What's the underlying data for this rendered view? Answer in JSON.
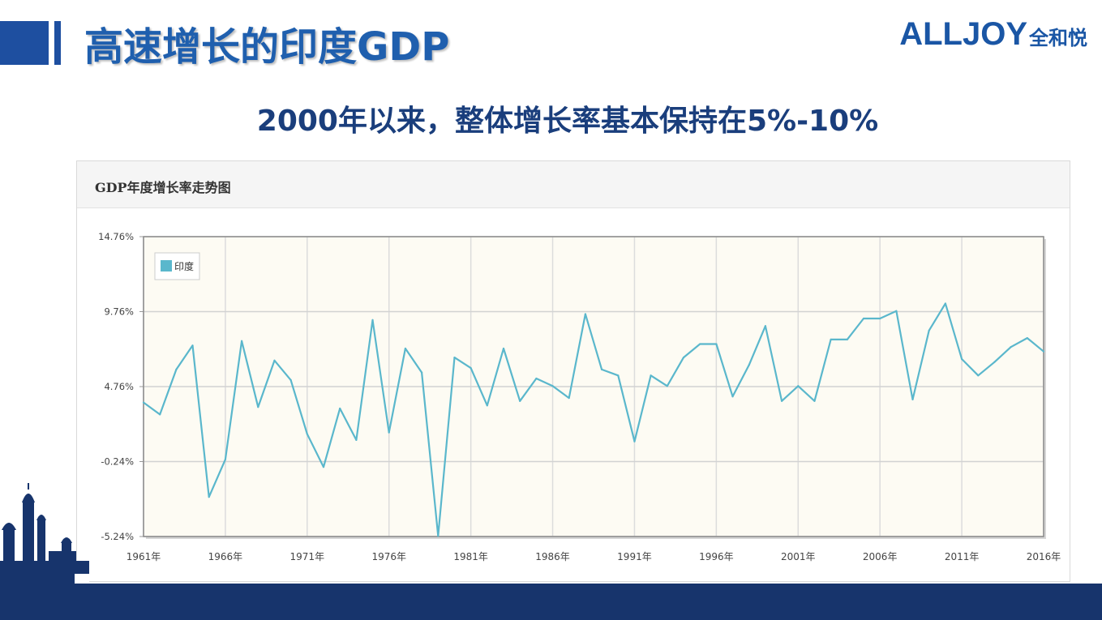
{
  "header": {
    "title": "高速增长的印度GDP",
    "logo_text": "ALLJOY",
    "logo_sub": "全和悦"
  },
  "subtitle": "2000年以来，整体增长率基本保持在5%-10%",
  "panel": {
    "title": "GDP年度增长率走势图"
  },
  "colors": {
    "line": "#5ab7cc",
    "accent": "#1e4fa0",
    "footer": "#17346c",
    "plot_bg": "#fdfbf3"
  },
  "chart_data": {
    "type": "line",
    "ylim": [
      -5.24,
      14.76
    ],
    "yticks": [
      -5.24,
      -0.24,
      4.76,
      9.76,
      14.76
    ],
    "ytick_labels": [
      "-5.24%",
      "-0.24%",
      "4.76%",
      "9.76%",
      "14.76%"
    ],
    "xtick_labels": [
      "1961年",
      "1966年",
      "1971年",
      "1976年",
      "1981年",
      "1986年",
      "1991年",
      "1996年",
      "2001年",
      "2006年",
      "2011年",
      "2016年"
    ],
    "legend_position": "top-left",
    "grid": true,
    "series": [
      {
        "name": "印度",
        "x": [
          1961,
          1962,
          1963,
          1964,
          1965,
          1966,
          1967,
          1968,
          1969,
          1970,
          1971,
          1972,
          1973,
          1974,
          1975,
          1976,
          1977,
          1978,
          1979,
          1980,
          1981,
          1982,
          1983,
          1984,
          1985,
          1986,
          1987,
          1988,
          1989,
          1990,
          1991,
          1992,
          1993,
          1994,
          1995,
          1996,
          1997,
          1998,
          1999,
          2000,
          2001,
          2002,
          2003,
          2004,
          2005,
          2006,
          2007,
          2008,
          2009,
          2010,
          2011,
          2012,
          2013,
          2014,
          2015,
          2016
        ],
        "values": [
          3.7,
          2.9,
          5.9,
          7.5,
          -2.6,
          -0.1,
          7.8,
          3.4,
          6.5,
          5.2,
          1.6,
          -0.6,
          3.3,
          1.2,
          9.2,
          1.7,
          7.3,
          5.7,
          -5.2,
          6.7,
          6.0,
          3.5,
          7.3,
          3.8,
          5.3,
          4.8,
          4.0,
          9.6,
          5.9,
          5.5,
          1.1,
          5.5,
          4.8,
          6.7,
          7.6,
          7.6,
          4.1,
          6.2,
          8.8,
          3.8,
          4.8,
          3.8,
          7.9,
          7.9,
          9.3,
          9.3,
          9.8,
          3.9,
          8.5,
          10.3,
          6.6,
          5.5,
          6.4,
          7.4,
          8.0,
          7.1
        ]
      }
    ]
  }
}
